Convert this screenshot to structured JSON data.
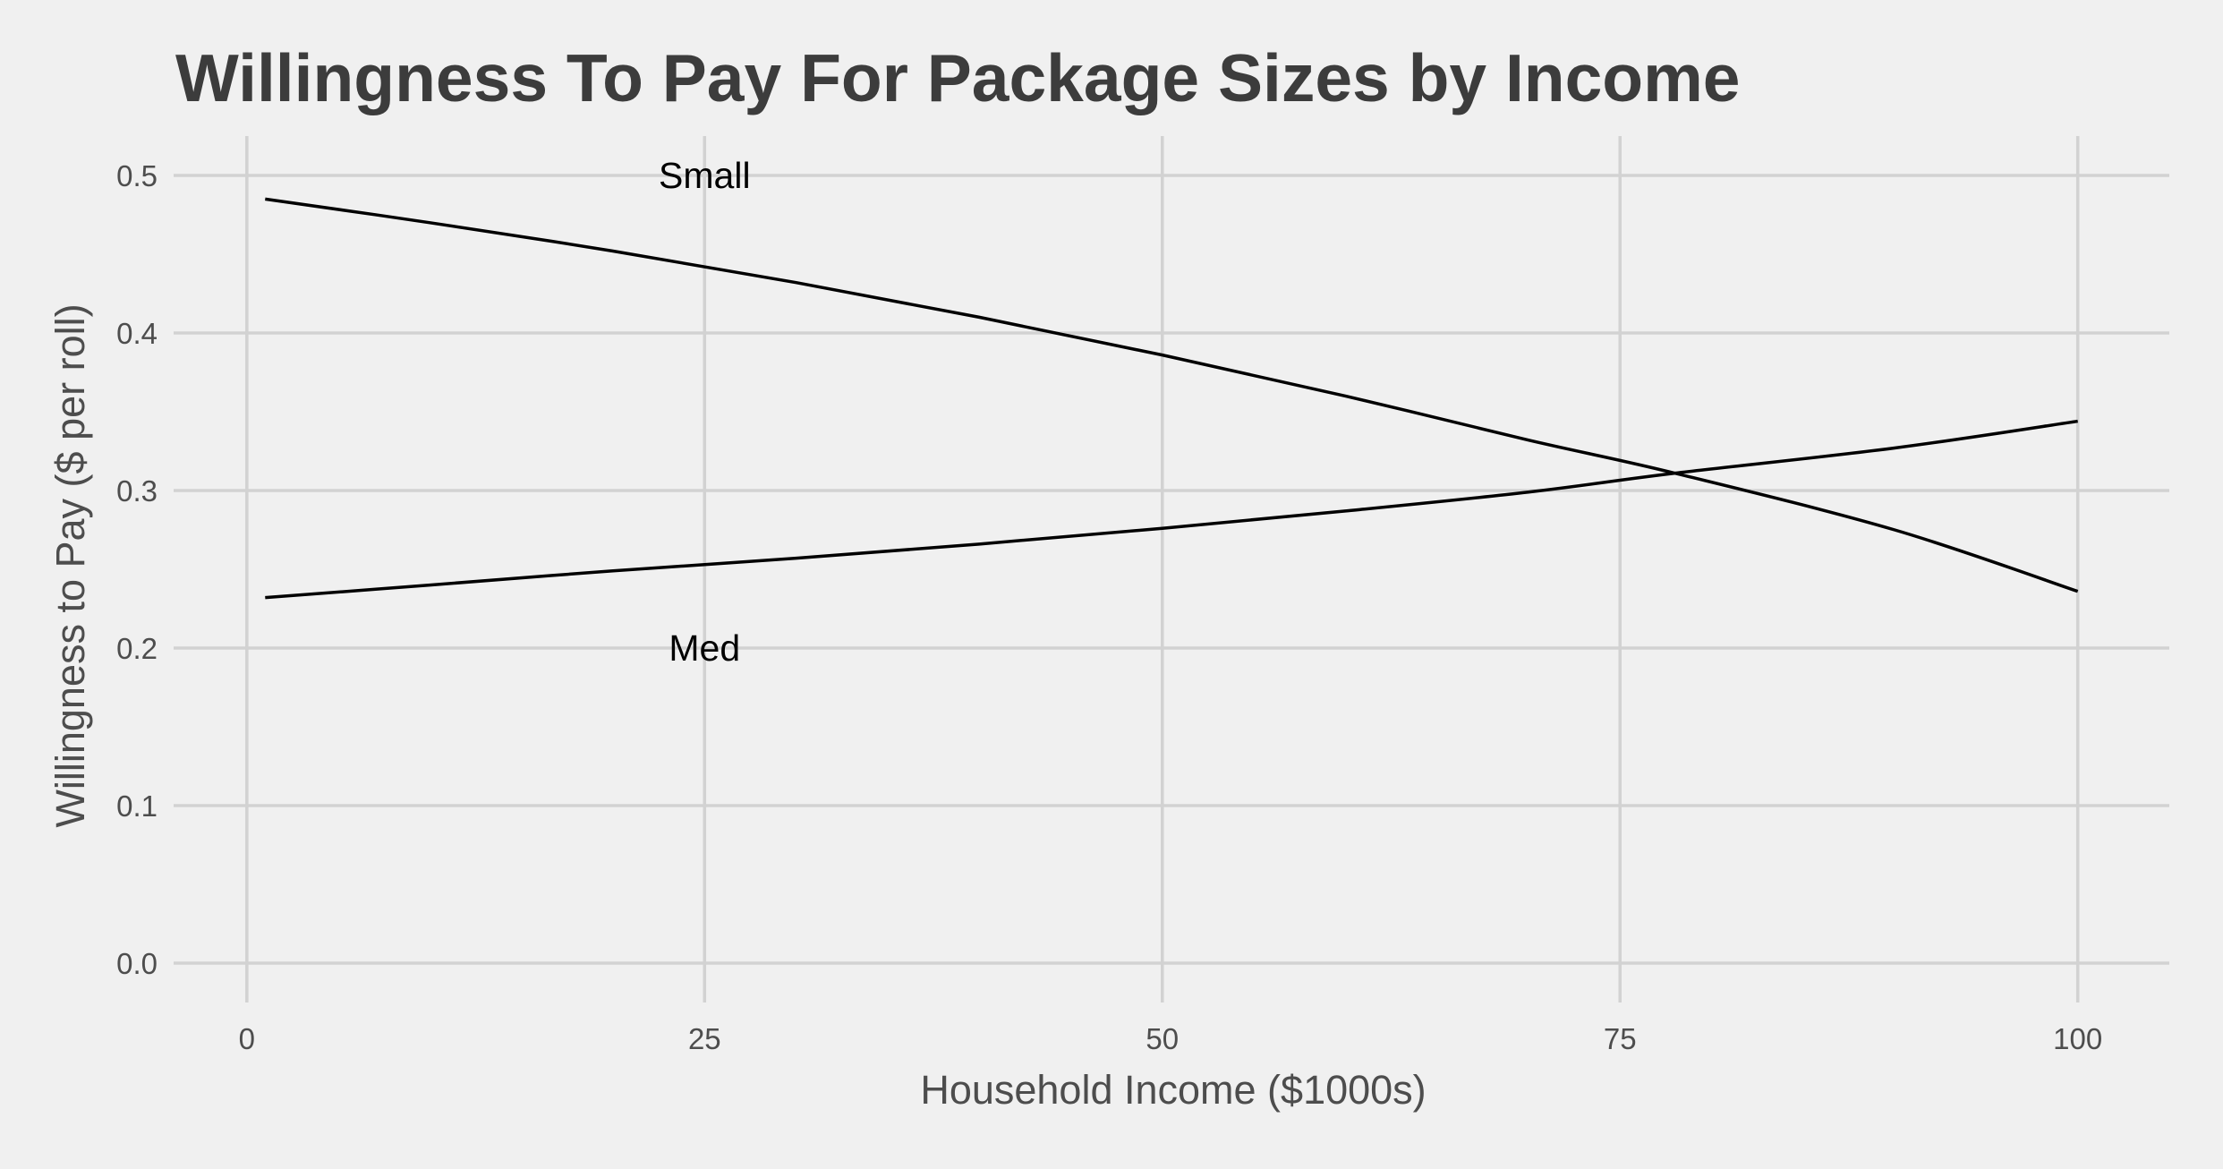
{
  "chart_data": {
    "type": "line",
    "title": "Willingness To Pay For Package Sizes by Income",
    "xlabel": "Household Income ($1000s)",
    "ylabel": "Willingness to Pay ($ per roll)",
    "xlim": [
      -4,
      105
    ],
    "ylim": [
      -0.025,
      0.525
    ],
    "x_ticks": [
      0,
      25,
      50,
      75,
      100
    ],
    "x_tick_labels": [
      "0",
      "25",
      "50",
      "75",
      "100"
    ],
    "y_ticks": [
      0.0,
      0.1,
      0.2,
      0.3,
      0.4,
      0.5
    ],
    "y_tick_labels": [
      "0.0",
      "0.1",
      "0.2",
      "0.3",
      "0.4",
      "0.5"
    ],
    "grid": true,
    "legend": "none",
    "x": [
      1,
      10,
      20,
      30,
      40,
      50,
      60,
      70,
      78,
      90,
      100
    ],
    "series": [
      {
        "values": [
          0.485,
          0.47,
          0.452,
          0.432,
          0.41,
          0.386,
          0.36,
          0.332,
          0.311,
          0.275,
          0.236
        ]
      },
      {
        "values": [
          0.232,
          0.24,
          0.249,
          0.257,
          0.266,
          0.276,
          0.287,
          0.299,
          0.311,
          0.327,
          0.344
        ]
      }
    ],
    "annotations": [
      {
        "text": "Small",
        "x": 25,
        "y": 0.5
      },
      {
        "text": "Med",
        "x": 25,
        "y": 0.2
      }
    ]
  }
}
